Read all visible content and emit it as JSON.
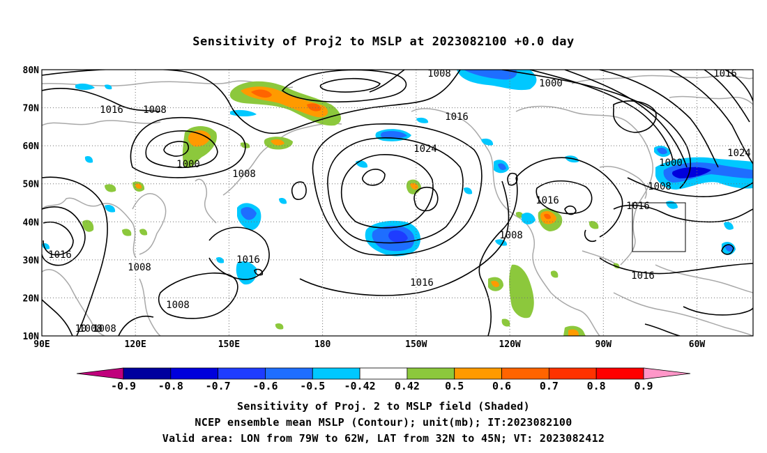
{
  "title": "Sensitivity of Proj2 to MSLP at 2023082100 +0.0 day",
  "map": {
    "lat_labels": [
      "80N",
      "70N",
      "60N",
      "50N",
      "40N",
      "30N",
      "20N",
      "10N"
    ],
    "lon_labels": [
      "90E",
      "120E",
      "150E",
      "180",
      "150W",
      "120W",
      "90W",
      "60W"
    ],
    "grid": "dotted",
    "valid_area_box": {
      "lon": [
        "79W",
        "62W"
      ],
      "lat": [
        "32N",
        "45N"
      ]
    }
  },
  "contours": {
    "labels": [
      "1008",
      "1016",
      "1008",
      "1000",
      "1016",
      "1024",
      "1000",
      "1008",
      "1016",
      "1016",
      "1024",
      "1000",
      "1008",
      "1016",
      "1008",
      "1016",
      "1016",
      "1008",
      "1016",
      "1016",
      "1008",
      "1008",
      "10",
      "1008"
    ],
    "color": "#000000"
  },
  "colorbar": {
    "ticks": [
      "-0.9",
      "-0.8",
      "-0.7",
      "-0.6",
      "-0.5",
      "-0.42",
      "0.42",
      "0.5",
      "0.6",
      "0.7",
      "0.8",
      "0.9"
    ],
    "colors": [
      "#c0007c",
      "#00009e",
      "#0000dc",
      "#1e3cff",
      "#1e6eff",
      "#00c8ff",
      "#ffffff",
      "#8cc83c",
      "#ff9a00",
      "#ff6400",
      "#ff3200",
      "#ff0000",
      "#ff96c8"
    ]
  },
  "captions": {
    "line1": "Sensitivity of Proj. 2 to MSLP field (Shaded)",
    "line2": "NCEP ensemble mean MSLP (Contour); unit(mb); IT:2023082100",
    "line3": "Valid area: LON from 79W to 62W, LAT from 32N to 45N; VT: 2023082412"
  }
}
